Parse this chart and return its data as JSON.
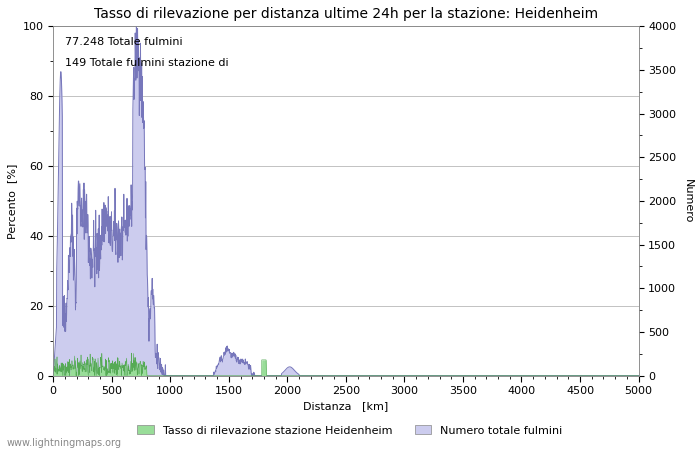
{
  "title": "Tasso di rilevazione per distanza ultime 24h per la stazione: Heidenheim",
  "xlabel": "Distanza   [km]",
  "ylabel_left": "Percento  [%]",
  "ylabel_right": "Numero",
  "annotation_line1": "77.248 Totale fulmini",
  "annotation_line2": "149 Totale fulmini stazione di",
  "legend_green": "Tasso di rilevazione stazione Heidenheim",
  "legend_blue": "Numero totale fulmini",
  "watermark": "www.lightningmaps.org",
  "xlim": [
    0,
    5000
  ],
  "ylim_left": [
    0,
    100
  ],
  "ylim_right": [
    0,
    4000
  ],
  "color_blue_line": "#7777bb",
  "color_blue_fill": "#ccccee",
  "color_green_fill": "#99dd99",
  "color_green_line": "#55aa55",
  "background_color": "#ffffff",
  "grid_color": "#aaaaaa",
  "title_fontsize": 10,
  "axis_fontsize": 8,
  "tick_fontsize": 8,
  "annotation_fontsize": 8,
  "watermark_fontsize": 7,
  "yticks_left": [
    0,
    20,
    40,
    60,
    80,
    100
  ],
  "yticks_right": [
    0,
    500,
    1000,
    1500,
    2000,
    2500,
    3000,
    3500,
    4000
  ],
  "xticks": [
    0,
    500,
    1000,
    1500,
    2000,
    2500,
    3000,
    3500,
    4000,
    4500,
    5000
  ]
}
